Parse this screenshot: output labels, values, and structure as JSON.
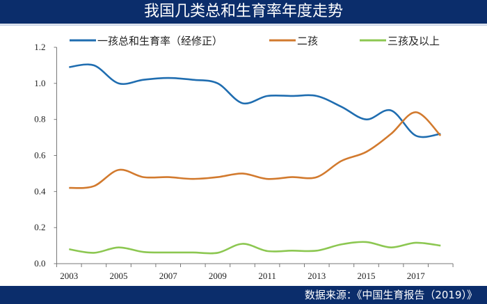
{
  "header": {
    "title": "我国几类总和生育率年度走势"
  },
  "footer": {
    "source": "数据来源：《中国生育报告（2019）》"
  },
  "chart_data": {
    "type": "line",
    "title": "我国几类总和生育率年度走势",
    "xlabel": "",
    "ylabel": "",
    "x": [
      2003,
      2004,
      2005,
      2006,
      2007,
      2008,
      2009,
      2010,
      2011,
      2012,
      2013,
      2014,
      2015,
      2016,
      2017,
      2018
    ],
    "x_tick_labels": [
      "2003",
      "2005",
      "2007",
      "2009",
      "2011",
      "2013",
      "2015",
      "2017"
    ],
    "y_tick_labels": [
      "0.0",
      "0.2",
      "0.4",
      "0.6",
      "0.8",
      "1.0",
      "1.2"
    ],
    "ylim": [
      0,
      1.2
    ],
    "grid": false,
    "legend": "top",
    "smooth": true,
    "series": [
      {
        "name": "一孩总和生育率（经修正）",
        "color": "#1f6db0",
        "values": [
          1.09,
          1.1,
          1.0,
          1.02,
          1.03,
          1.02,
          1.0,
          0.89,
          0.93,
          0.93,
          0.93,
          0.87,
          0.8,
          0.85,
          0.71,
          0.72
        ]
      },
      {
        "name": "二孩",
        "color": "#d27a2e",
        "values": [
          0.42,
          0.43,
          0.52,
          0.48,
          0.48,
          0.47,
          0.48,
          0.5,
          0.47,
          0.48,
          0.48,
          0.57,
          0.62,
          0.72,
          0.84,
          0.71
        ]
      },
      {
        "name": "三孩及以上",
        "color": "#8cc751",
        "values": [
          0.08,
          0.06,
          0.09,
          0.065,
          0.062,
          0.062,
          0.06,
          0.11,
          0.07,
          0.072,
          0.072,
          0.107,
          0.12,
          0.09,
          0.116,
          0.1
        ]
      }
    ]
  }
}
